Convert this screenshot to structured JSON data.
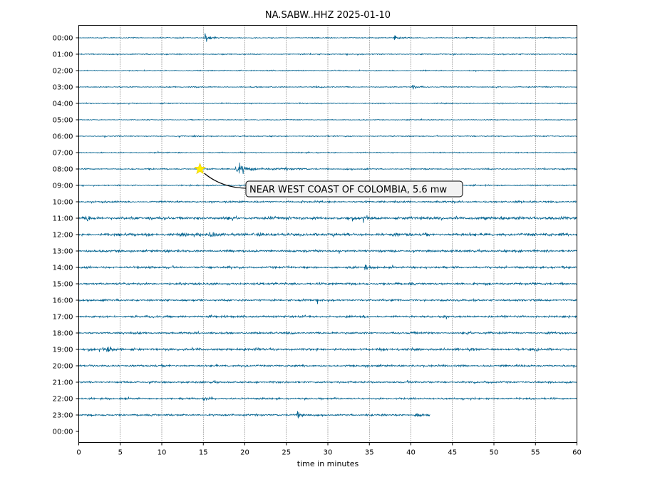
{
  "chart_data": {
    "type": "line",
    "title": "NA.SABW..HHZ 2025-01-10",
    "xlabel": "time in minutes",
    "ylabel": "",
    "xlim": [
      0,
      60
    ],
    "x_ticks": [
      "0",
      "5",
      "10",
      "15",
      "20",
      "25",
      "30",
      "35",
      "40",
      "45",
      "50",
      "55",
      "60"
    ],
    "row_labels": [
      "00:00",
      "01:00",
      "02:00",
      "03:00",
      "04:00",
      "05:00",
      "06:00",
      "07:00",
      "08:00",
      "09:00",
      "10:00",
      "11:00",
      "12:00",
      "13:00",
      "14:00",
      "15:00",
      "16:00",
      "17:00",
      "18:00",
      "19:00",
      "20:00",
      "21:00",
      "22:00",
      "23:00",
      "00:00"
    ],
    "grid": "vertical dotted lines every 5 minutes",
    "trace_color": "#00628f",
    "noise_level_by_hour": [
      0.25,
      0.25,
      0.25,
      0.25,
      0.25,
      0.22,
      0.25,
      0.25,
      0.3,
      0.3,
      0.45,
      0.75,
      0.75,
      0.55,
      0.55,
      0.55,
      0.5,
      0.55,
      0.5,
      0.6,
      0.5,
      0.45,
      0.45,
      0.45
    ],
    "trace_end_minutes_last_row": 42.3,
    "bursts": [
      {
        "hour": 0,
        "minute": 15.2,
        "amp": 2.6
      },
      {
        "hour": 0,
        "minute": 38.0,
        "amp": 1.4
      },
      {
        "hour": 3,
        "minute": 40.2,
        "amp": 1.3
      },
      {
        "hour": 8,
        "minute": 18.9,
        "amp": 3.2
      },
      {
        "hour": 8,
        "minute": 19.5,
        "amp": 1.6
      },
      {
        "hour": 11,
        "minute": 1.0,
        "amp": 1.2
      },
      {
        "hour": 12,
        "minute": 15.8,
        "amp": 1.8
      },
      {
        "hour": 14,
        "minute": 34.5,
        "amp": 1.3
      },
      {
        "hour": 19,
        "minute": 3.5,
        "amp": 1.4
      },
      {
        "hour": 22,
        "minute": 15.0,
        "amp": 1.2
      },
      {
        "hour": 23,
        "minute": 26.3,
        "amp": 1.6
      },
      {
        "hour": 23,
        "minute": 40.5,
        "amp": 1.5
      }
    ],
    "event": {
      "label": "NEAR WEST COAST OF COLOMBIA, 5.6 mw",
      "hour": 8,
      "minute": 14.6,
      "marker": "star",
      "marker_color": "#ffee00"
    }
  }
}
